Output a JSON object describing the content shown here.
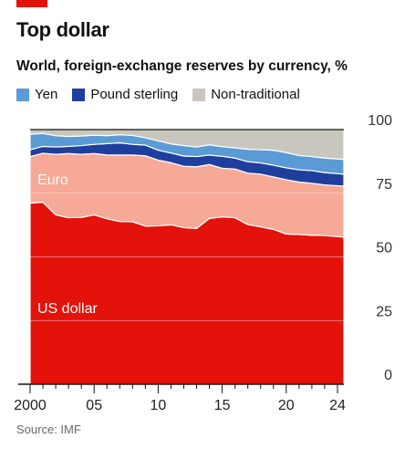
{
  "header": {
    "title": "Top dollar",
    "subtitle": "World, foreign-exchange reserves by currency, %"
  },
  "legend": [
    {
      "name": "Yen",
      "color": "#5b9bd5"
    },
    {
      "name": "Pound sterling",
      "color": "#1f3f9e"
    },
    {
      "name": "Non-traditional",
      "color": "#c9c6bd"
    }
  ],
  "footer": {
    "source": "Source: IMF"
  },
  "chart_data": {
    "type": "area",
    "stacked": true,
    "ylim": [
      0,
      100
    ],
    "xlim": [
      2000,
      2024.5
    ],
    "yticks": [
      "0",
      "25",
      "50",
      "75",
      "100"
    ],
    "ytick_values": [
      0,
      25,
      50,
      75,
      100
    ],
    "xticks": [
      "2000",
      "05",
      "10",
      "15",
      "20",
      "24"
    ],
    "xtick_values": [
      2000,
      2005,
      2010,
      2015,
      2020,
      2024
    ],
    "grid": true,
    "inline_labels": {
      "us_dollar": "US dollar",
      "euro": "Euro"
    },
    "x": [
      2000,
      2001,
      2002,
      2003,
      2004,
      2005,
      2006,
      2007,
      2008,
      2009,
      2010,
      2011,
      2012,
      2013,
      2014,
      2015,
      2016,
      2017,
      2018,
      2019,
      2020,
      2021,
      2022,
      2023,
      2024.5
    ],
    "series": [
      {
        "name": "US dollar",
        "color": "#e3120b",
        "values": [
          71.1,
          71.5,
          66.5,
          65.4,
          65.5,
          66.5,
          65.0,
          63.9,
          63.8,
          62.1,
          62.2,
          62.6,
          61.5,
          61.2,
          65.1,
          65.7,
          65.4,
          62.7,
          61.8,
          60.8,
          59.0,
          58.8,
          58.5,
          58.4,
          57.8
        ]
      },
      {
        "name": "Euro",
        "color": "#f6a996",
        "values": [
          18.3,
          19.2,
          23.8,
          25.2,
          24.8,
          24.1,
          25.0,
          26.1,
          26.2,
          27.6,
          25.8,
          24.4,
          24.1,
          24.2,
          21.2,
          19.1,
          19.1,
          20.2,
          20.7,
          20.6,
          21.3,
          20.6,
          20.4,
          19.9,
          20.0
        ]
      },
      {
        "name": "Pound sterling",
        "color": "#1f3f9e",
        "values": [
          2.7,
          2.7,
          2.9,
          2.8,
          3.4,
          3.6,
          4.5,
          4.8,
          4.2,
          4.2,
          3.9,
          3.8,
          4.0,
          4.0,
          3.7,
          4.7,
          4.3,
          4.5,
          4.4,
          4.6,
          4.7,
          4.8,
          5.0,
          4.8,
          4.7
        ]
      },
      {
        "name": "Yen",
        "color": "#5b9bd5",
        "values": [
          6.1,
          5.1,
          4.4,
          3.9,
          3.8,
          3.6,
          3.1,
          3.2,
          3.5,
          2.9,
          3.7,
          3.6,
          4.1,
          3.8,
          4.0,
          3.8,
          4.0,
          4.9,
          5.2,
          5.9,
          6.0,
          5.6,
          5.5,
          5.7,
          5.8
        ]
      },
      {
        "name": "Non-traditional",
        "color": "#c9c6bd",
        "values": [
          1.8,
          1.5,
          2.4,
          2.7,
          2.5,
          2.2,
          2.4,
          2.0,
          2.3,
          3.2,
          4.4,
          5.6,
          6.3,
          6.8,
          6.0,
          6.7,
          7.2,
          7.7,
          7.9,
          8.1,
          9.0,
          10.2,
          10.6,
          11.2,
          11.7
        ]
      }
    ]
  }
}
